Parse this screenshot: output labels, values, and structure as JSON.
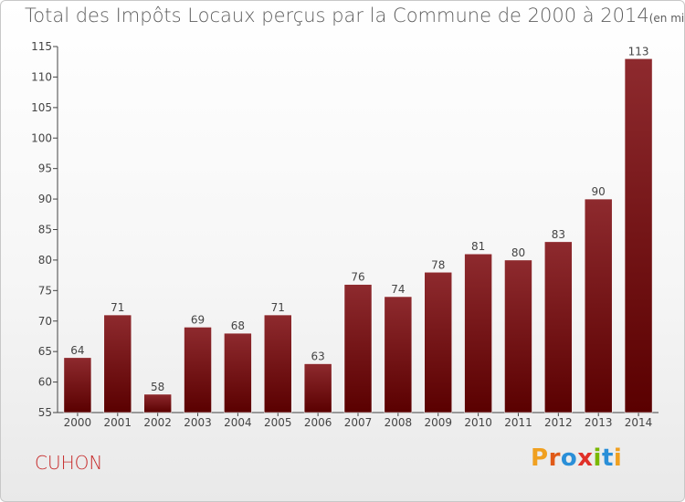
{
  "header": {
    "title": "Total des Impôts Locaux perçus par la Commune de 2000 à 2014",
    "unit": "(en milliers d'€)"
  },
  "footer": {
    "commune": "CUHON",
    "logo": "Proxiti"
  },
  "colors": {
    "bar_dark": "#5a0000",
    "bar_light": "#8e2a2e",
    "title": "#5e5e5e",
    "commune": "#c62a2a"
  },
  "chart_data": {
    "type": "bar",
    "title": "Total des Impôts Locaux perçus par la Commune de 2000 à 2014",
    "xlabel": "",
    "ylabel": "",
    "ylim": [
      55,
      115
    ],
    "yticks": [
      55,
      60,
      65,
      70,
      75,
      80,
      85,
      90,
      95,
      100,
      105,
      110,
      115
    ],
    "grid": false,
    "categories": [
      "2000",
      "2001",
      "2002",
      "2003",
      "2004",
      "2005",
      "2006",
      "2007",
      "2008",
      "2009",
      "2010",
      "2011",
      "2012",
      "2013",
      "2014"
    ],
    "values": [
      64,
      71,
      58,
      69,
      68,
      71,
      63,
      76,
      74,
      78,
      81,
      80,
      83,
      90,
      113
    ]
  }
}
